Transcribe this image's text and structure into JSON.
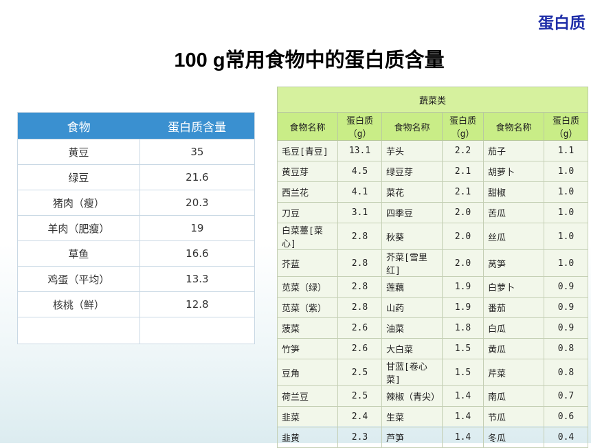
{
  "corner_label": "蛋白质",
  "title": {
    "number": "100 g",
    "rest": "常用食物中的蛋白质含量"
  },
  "left_table": {
    "headers": [
      "食物",
      "蛋白质含量"
    ],
    "rows": [
      [
        "黄豆",
        "35"
      ],
      [
        "绿豆",
        "21.6"
      ],
      [
        "猪肉（瘦）",
        "20.3"
      ],
      [
        "羊肉（肥瘦）",
        "19"
      ],
      [
        "草鱼",
        "16.6"
      ],
      [
        "鸡蛋（平均）",
        "13.3"
      ],
      [
        "核桃（鲜）",
        "12.8"
      ],
      [
        "",
        ""
      ]
    ]
  },
  "right_table": {
    "category": "蔬菜类",
    "headers": [
      "食物名称",
      "蛋白质（g）",
      "食物名称",
      "蛋白质（g）",
      "食物名称",
      "蛋白质（g）"
    ],
    "rows": [
      [
        "毛豆[青豆]",
        "13.1",
        "芋头",
        "2.2",
        "茄子",
        "1.1"
      ],
      [
        "黄豆芽",
        "4.5",
        "绿豆芽",
        "2.1",
        "胡萝卜",
        "1.0"
      ],
      [
        "西兰花",
        "4.1",
        "菜花",
        "2.1",
        "甜椒",
        "1.0"
      ],
      [
        "刀豆",
        "3.1",
        "四季豆",
        "2.0",
        "苦瓜",
        "1.0"
      ],
      [
        "白菜薹[菜心]",
        "2.8",
        "秋葵",
        "2.0",
        "丝瓜",
        "1.0"
      ],
      [
        "芥蓝",
        "2.8",
        "芥菜[雪里红]",
        "2.0",
        "莴笋",
        "1.0"
      ],
      [
        "苋菜（绿）",
        "2.8",
        "莲藕",
        "1.9",
        "白萝卜",
        "0.9"
      ],
      [
        "苋菜（紫）",
        "2.8",
        "山药",
        "1.9",
        "番茄",
        "0.9"
      ],
      [
        "菠菜",
        "2.6",
        "油菜",
        "1.8",
        "白瓜",
        "0.9"
      ],
      [
        "竹笋",
        "2.6",
        "大白菜",
        "1.5",
        "黄瓜",
        "0.8"
      ],
      [
        "豆角",
        "2.5",
        "甘蓝[卷心菜]",
        "1.5",
        "芹菜",
        "0.8"
      ],
      [
        "荷兰豆",
        "2.5",
        "辣椒（青尖）",
        "1.4",
        "南瓜",
        "0.7"
      ],
      [
        "韭菜",
        "2.4",
        "生菜",
        "1.4",
        "节瓜",
        "0.6"
      ],
      [
        "韭黄",
        "2.3",
        "芦笋",
        "1.4",
        "冬瓜",
        "0.4"
      ]
    ]
  }
}
